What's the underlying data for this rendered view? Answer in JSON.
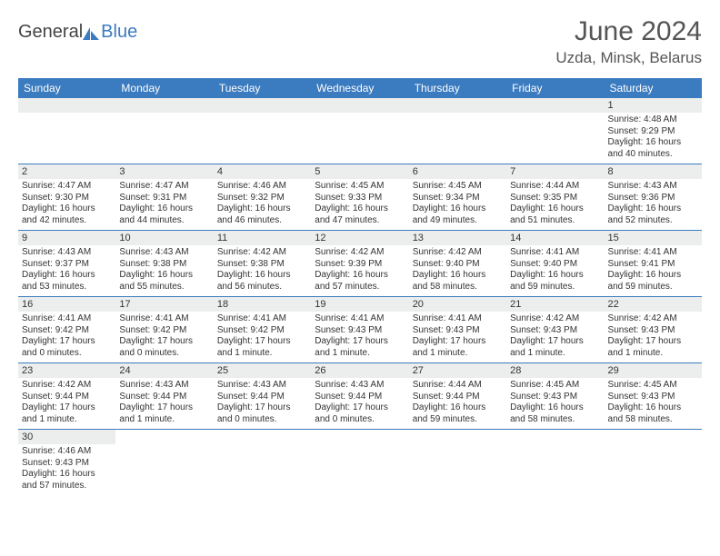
{
  "logo": {
    "text1": "General",
    "text2": "Blue",
    "icon_color": "#3b7bbf"
  },
  "header": {
    "month": "June 2024",
    "location": "Uzda, Minsk, Belarus"
  },
  "colors": {
    "header_bg": "#3b7bbf",
    "header_text": "#ffffff",
    "daynum_bg": "#eceded",
    "border": "#3b7bbf"
  },
  "day_headers": [
    "Sunday",
    "Monday",
    "Tuesday",
    "Wednesday",
    "Thursday",
    "Friday",
    "Saturday"
  ],
  "weeks": [
    [
      null,
      null,
      null,
      null,
      null,
      null,
      {
        "n": "1",
        "sunrise": "Sunrise: 4:48 AM",
        "sunset": "Sunset: 9:29 PM",
        "daylight": "Daylight: 16 hours and 40 minutes."
      }
    ],
    [
      {
        "n": "2",
        "sunrise": "Sunrise: 4:47 AM",
        "sunset": "Sunset: 9:30 PM",
        "daylight": "Daylight: 16 hours and 42 minutes."
      },
      {
        "n": "3",
        "sunrise": "Sunrise: 4:47 AM",
        "sunset": "Sunset: 9:31 PM",
        "daylight": "Daylight: 16 hours and 44 minutes."
      },
      {
        "n": "4",
        "sunrise": "Sunrise: 4:46 AM",
        "sunset": "Sunset: 9:32 PM",
        "daylight": "Daylight: 16 hours and 46 minutes."
      },
      {
        "n": "5",
        "sunrise": "Sunrise: 4:45 AM",
        "sunset": "Sunset: 9:33 PM",
        "daylight": "Daylight: 16 hours and 47 minutes."
      },
      {
        "n": "6",
        "sunrise": "Sunrise: 4:45 AM",
        "sunset": "Sunset: 9:34 PM",
        "daylight": "Daylight: 16 hours and 49 minutes."
      },
      {
        "n": "7",
        "sunrise": "Sunrise: 4:44 AM",
        "sunset": "Sunset: 9:35 PM",
        "daylight": "Daylight: 16 hours and 51 minutes."
      },
      {
        "n": "8",
        "sunrise": "Sunrise: 4:43 AM",
        "sunset": "Sunset: 9:36 PM",
        "daylight": "Daylight: 16 hours and 52 minutes."
      }
    ],
    [
      {
        "n": "9",
        "sunrise": "Sunrise: 4:43 AM",
        "sunset": "Sunset: 9:37 PM",
        "daylight": "Daylight: 16 hours and 53 minutes."
      },
      {
        "n": "10",
        "sunrise": "Sunrise: 4:43 AM",
        "sunset": "Sunset: 9:38 PM",
        "daylight": "Daylight: 16 hours and 55 minutes."
      },
      {
        "n": "11",
        "sunrise": "Sunrise: 4:42 AM",
        "sunset": "Sunset: 9:38 PM",
        "daylight": "Daylight: 16 hours and 56 minutes."
      },
      {
        "n": "12",
        "sunrise": "Sunrise: 4:42 AM",
        "sunset": "Sunset: 9:39 PM",
        "daylight": "Daylight: 16 hours and 57 minutes."
      },
      {
        "n": "13",
        "sunrise": "Sunrise: 4:42 AM",
        "sunset": "Sunset: 9:40 PM",
        "daylight": "Daylight: 16 hours and 58 minutes."
      },
      {
        "n": "14",
        "sunrise": "Sunrise: 4:41 AM",
        "sunset": "Sunset: 9:40 PM",
        "daylight": "Daylight: 16 hours and 59 minutes."
      },
      {
        "n": "15",
        "sunrise": "Sunrise: 4:41 AM",
        "sunset": "Sunset: 9:41 PM",
        "daylight": "Daylight: 16 hours and 59 minutes."
      }
    ],
    [
      {
        "n": "16",
        "sunrise": "Sunrise: 4:41 AM",
        "sunset": "Sunset: 9:42 PM",
        "daylight": "Daylight: 17 hours and 0 minutes."
      },
      {
        "n": "17",
        "sunrise": "Sunrise: 4:41 AM",
        "sunset": "Sunset: 9:42 PM",
        "daylight": "Daylight: 17 hours and 0 minutes."
      },
      {
        "n": "18",
        "sunrise": "Sunrise: 4:41 AM",
        "sunset": "Sunset: 9:42 PM",
        "daylight": "Daylight: 17 hours and 1 minute."
      },
      {
        "n": "19",
        "sunrise": "Sunrise: 4:41 AM",
        "sunset": "Sunset: 9:43 PM",
        "daylight": "Daylight: 17 hours and 1 minute."
      },
      {
        "n": "20",
        "sunrise": "Sunrise: 4:41 AM",
        "sunset": "Sunset: 9:43 PM",
        "daylight": "Daylight: 17 hours and 1 minute."
      },
      {
        "n": "21",
        "sunrise": "Sunrise: 4:42 AM",
        "sunset": "Sunset: 9:43 PM",
        "daylight": "Daylight: 17 hours and 1 minute."
      },
      {
        "n": "22",
        "sunrise": "Sunrise: 4:42 AM",
        "sunset": "Sunset: 9:43 PM",
        "daylight": "Daylight: 17 hours and 1 minute."
      }
    ],
    [
      {
        "n": "23",
        "sunrise": "Sunrise: 4:42 AM",
        "sunset": "Sunset: 9:44 PM",
        "daylight": "Daylight: 17 hours and 1 minute."
      },
      {
        "n": "24",
        "sunrise": "Sunrise: 4:43 AM",
        "sunset": "Sunset: 9:44 PM",
        "daylight": "Daylight: 17 hours and 1 minute."
      },
      {
        "n": "25",
        "sunrise": "Sunrise: 4:43 AM",
        "sunset": "Sunset: 9:44 PM",
        "daylight": "Daylight: 17 hours and 0 minutes."
      },
      {
        "n": "26",
        "sunrise": "Sunrise: 4:43 AM",
        "sunset": "Sunset: 9:44 PM",
        "daylight": "Daylight: 17 hours and 0 minutes."
      },
      {
        "n": "27",
        "sunrise": "Sunrise: 4:44 AM",
        "sunset": "Sunset: 9:44 PM",
        "daylight": "Daylight: 16 hours and 59 minutes."
      },
      {
        "n": "28",
        "sunrise": "Sunrise: 4:45 AM",
        "sunset": "Sunset: 9:43 PM",
        "daylight": "Daylight: 16 hours and 58 minutes."
      },
      {
        "n": "29",
        "sunrise": "Sunrise: 4:45 AM",
        "sunset": "Sunset: 9:43 PM",
        "daylight": "Daylight: 16 hours and 58 minutes."
      }
    ],
    [
      {
        "n": "30",
        "sunrise": "Sunrise: 4:46 AM",
        "sunset": "Sunset: 9:43 PM",
        "daylight": "Daylight: 16 hours and 57 minutes."
      },
      null,
      null,
      null,
      null,
      null,
      null
    ]
  ]
}
